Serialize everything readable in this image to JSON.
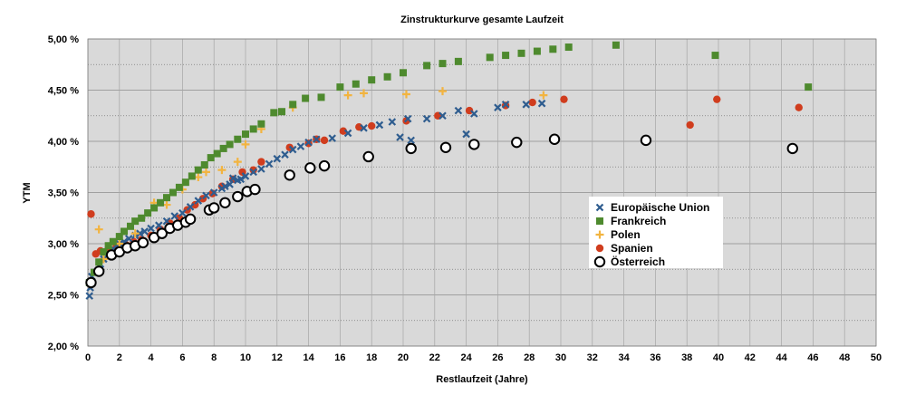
{
  "chart_data": {
    "type": "scatter",
    "title": "Zinstrukturkurve gesamte Laufzeit",
    "xlabel": "Restlaufzeit (Jahre)",
    "ylabel": "YTM",
    "xlim": [
      0,
      50
    ],
    "ylim": [
      2.0,
      5.0
    ],
    "x_ticks": [
      "0",
      "2",
      "4",
      "6",
      "8",
      "10",
      "12",
      "14",
      "16",
      "18",
      "20",
      "22",
      "24",
      "26",
      "28",
      "30",
      "32",
      "34",
      "36",
      "38",
      "40",
      "42",
      "44",
      "46",
      "48",
      "50"
    ],
    "y_ticks": [
      "2,00 %",
      "2,50 %",
      "3,00 %",
      "3,50 %",
      "4,00 %",
      "4,50 %",
      "5,00 %"
    ],
    "grid": "major and minor horizontal, major vertical",
    "legend_position": "right-center",
    "series": [
      {
        "name": "Europäische Union",
        "marker": "x",
        "color": "#2f5d8f",
        "points": [
          [
            0.1,
            2.49
          ],
          [
            0.15,
            2.57
          ],
          [
            0.2,
            2.63
          ],
          [
            0.25,
            2.68
          ],
          [
            0.5,
            2.72
          ],
          [
            0.8,
            2.8
          ],
          [
            1.0,
            2.85
          ],
          [
            1.3,
            2.9
          ],
          [
            1.6,
            2.95
          ],
          [
            2.0,
            3.0
          ],
          [
            2.3,
            3.02
          ],
          [
            2.6,
            3.05
          ],
          [
            3.0,
            3.08
          ],
          [
            3.3,
            3.1
          ],
          [
            3.6,
            3.12
          ],
          [
            4.0,
            3.15
          ],
          [
            4.5,
            3.18
          ],
          [
            5.0,
            3.22
          ],
          [
            5.5,
            3.27
          ],
          [
            6.0,
            3.3
          ],
          [
            6.5,
            3.36
          ],
          [
            7.0,
            3.42
          ],
          [
            7.5,
            3.47
          ],
          [
            8.0,
            3.5
          ],
          [
            8.5,
            3.54
          ],
          [
            9.0,
            3.58
          ],
          [
            9.5,
            3.62
          ],
          [
            10.0,
            3.66
          ],
          [
            10.5,
            3.7
          ],
          [
            11.0,
            3.73
          ],
          [
            11.5,
            3.78
          ],
          [
            12.0,
            3.83
          ],
          [
            12.5,
            3.87
          ],
          [
            13.0,
            3.92
          ],
          [
            13.5,
            3.95
          ],
          [
            14.0,
            3.99
          ],
          [
            14.5,
            4.02
          ],
          [
            15.5,
            4.03
          ],
          [
            16.5,
            4.08
          ],
          [
            17.5,
            4.13
          ],
          [
            18.5,
            4.16
          ],
          [
            19.3,
            4.19
          ],
          [
            19.8,
            4.04
          ],
          [
            20.3,
            4.22
          ],
          [
            20.5,
            4.01
          ],
          [
            21.5,
            4.22
          ],
          [
            22.5,
            4.25
          ],
          [
            23.5,
            4.3
          ],
          [
            24.0,
            4.07
          ],
          [
            24.5,
            4.27
          ],
          [
            26.0,
            4.33
          ],
          [
            26.5,
            4.36
          ],
          [
            27.8,
            4.36
          ],
          [
            28.8,
            4.37
          ],
          [
            8.7,
            3.56
          ],
          [
            9.2,
            3.64
          ],
          [
            9.7,
            3.63
          ]
        ]
      },
      {
        "name": "Frankreich",
        "marker": "square",
        "color": "#4e8a2e",
        "points": [
          [
            0.1,
            2.62
          ],
          [
            0.4,
            2.72
          ],
          [
            0.7,
            2.82
          ],
          [
            1.0,
            2.92
          ],
          [
            1.3,
            2.98
          ],
          [
            1.6,
            3.02
          ],
          [
            2.0,
            3.07
          ],
          [
            2.3,
            3.12
          ],
          [
            2.7,
            3.17
          ],
          [
            3.0,
            3.22
          ],
          [
            3.4,
            3.25
          ],
          [
            3.8,
            3.3
          ],
          [
            4.2,
            3.35
          ],
          [
            4.6,
            3.4
          ],
          [
            5.0,
            3.45
          ],
          [
            5.4,
            3.5
          ],
          [
            5.8,
            3.55
          ],
          [
            6.2,
            3.6
          ],
          [
            6.6,
            3.66
          ],
          [
            7.0,
            3.72
          ],
          [
            7.4,
            3.77
          ],
          [
            7.8,
            3.84
          ],
          [
            8.2,
            3.88
          ],
          [
            8.6,
            3.93
          ],
          [
            9.0,
            3.97
          ],
          [
            9.5,
            4.02
          ],
          [
            10.0,
            4.07
          ],
          [
            10.5,
            4.12
          ],
          [
            11.0,
            4.17
          ],
          [
            11.8,
            4.28
          ],
          [
            12.3,
            4.29
          ],
          [
            13.0,
            4.36
          ],
          [
            13.8,
            4.42
          ],
          [
            14.8,
            4.43
          ],
          [
            16.0,
            4.53
          ],
          [
            17.0,
            4.56
          ],
          [
            18.0,
            4.6
          ],
          [
            19.0,
            4.63
          ],
          [
            20.0,
            4.67
          ],
          [
            21.5,
            4.74
          ],
          [
            22.5,
            4.76
          ],
          [
            23.5,
            4.78
          ],
          [
            25.5,
            4.82
          ],
          [
            26.5,
            4.84
          ],
          [
            27.5,
            4.86
          ],
          [
            28.5,
            4.88
          ],
          [
            29.5,
            4.9
          ],
          [
            30.5,
            4.92
          ],
          [
            33.5,
            4.94
          ],
          [
            39.8,
            4.84
          ],
          [
            45.7,
            4.53
          ]
        ]
      },
      {
        "name": "Polen",
        "marker": "plus",
        "color": "#f2b440",
        "points": [
          [
            0.2,
            2.62
          ],
          [
            0.7,
            3.14
          ],
          [
            1.0,
            2.85
          ],
          [
            2.0,
            3.0
          ],
          [
            3.0,
            3.1
          ],
          [
            4.2,
            3.4
          ],
          [
            5.0,
            3.38
          ],
          [
            6.0,
            3.53
          ],
          [
            7.0,
            3.65
          ],
          [
            7.5,
            3.7
          ],
          [
            8.5,
            3.72
          ],
          [
            9.5,
            3.8
          ],
          [
            10.0,
            3.97
          ],
          [
            11.0,
            4.12
          ],
          [
            13.0,
            4.33
          ],
          [
            16.5,
            4.45
          ],
          [
            17.5,
            4.47
          ],
          [
            20.2,
            4.46
          ],
          [
            22.5,
            4.49
          ],
          [
            28.9,
            4.45
          ]
        ]
      },
      {
        "name": "Spanien",
        "marker": "circle",
        "color": "#d03d1e",
        "points": [
          [
            0.2,
            3.29
          ],
          [
            0.5,
            2.9
          ],
          [
            0.8,
            2.93
          ],
          [
            1.3,
            2.95
          ],
          [
            1.8,
            2.97
          ],
          [
            2.4,
            2.99
          ],
          [
            2.9,
            3.02
          ],
          [
            3.4,
            3.04
          ],
          [
            4.0,
            3.08
          ],
          [
            4.6,
            3.14
          ],
          [
            5.2,
            3.2
          ],
          [
            5.8,
            3.25
          ],
          [
            6.3,
            3.33
          ],
          [
            6.8,
            3.38
          ],
          [
            7.3,
            3.44
          ],
          [
            7.9,
            3.49
          ],
          [
            8.5,
            3.56
          ],
          [
            9.2,
            3.63
          ],
          [
            9.8,
            3.7
          ],
          [
            10.5,
            3.72
          ],
          [
            11.0,
            3.8
          ],
          [
            12.8,
            3.94
          ],
          [
            14.0,
            3.98
          ],
          [
            14.5,
            4.02
          ],
          [
            15.0,
            4.01
          ],
          [
            16.2,
            4.1
          ],
          [
            17.2,
            4.14
          ],
          [
            18.0,
            4.15
          ],
          [
            20.2,
            4.2
          ],
          [
            22.2,
            4.25
          ],
          [
            24.2,
            4.3
          ],
          [
            26.5,
            4.35
          ],
          [
            28.2,
            4.38
          ],
          [
            30.2,
            4.41
          ],
          [
            38.2,
            4.16
          ],
          [
            39.9,
            4.41
          ],
          [
            45.1,
            4.33
          ]
        ]
      },
      {
        "name": "Österreich",
        "marker": "open-circle",
        "color": "#000000",
        "points": [
          [
            0.2,
            2.62
          ],
          [
            0.7,
            2.73
          ],
          [
            1.5,
            2.89
          ],
          [
            2.0,
            2.92
          ],
          [
            2.5,
            2.96
          ],
          [
            3.0,
            2.98
          ],
          [
            3.5,
            3.01
          ],
          [
            4.2,
            3.06
          ],
          [
            4.7,
            3.1
          ],
          [
            5.2,
            3.15
          ],
          [
            5.7,
            3.18
          ],
          [
            6.2,
            3.21
          ],
          [
            6.5,
            3.24
          ],
          [
            7.7,
            3.33
          ],
          [
            8.0,
            3.35
          ],
          [
            8.7,
            3.4
          ],
          [
            9.5,
            3.46
          ],
          [
            10.1,
            3.51
          ],
          [
            10.6,
            3.53
          ],
          [
            12.8,
            3.67
          ],
          [
            14.1,
            3.74
          ],
          [
            15.0,
            3.76
          ],
          [
            17.8,
            3.85
          ],
          [
            20.5,
            3.93
          ],
          [
            22.7,
            3.94
          ],
          [
            24.5,
            3.97
          ],
          [
            27.2,
            3.99
          ],
          [
            29.6,
            4.02
          ],
          [
            35.4,
            4.01
          ],
          [
            44.7,
            3.93
          ]
        ]
      }
    ]
  }
}
